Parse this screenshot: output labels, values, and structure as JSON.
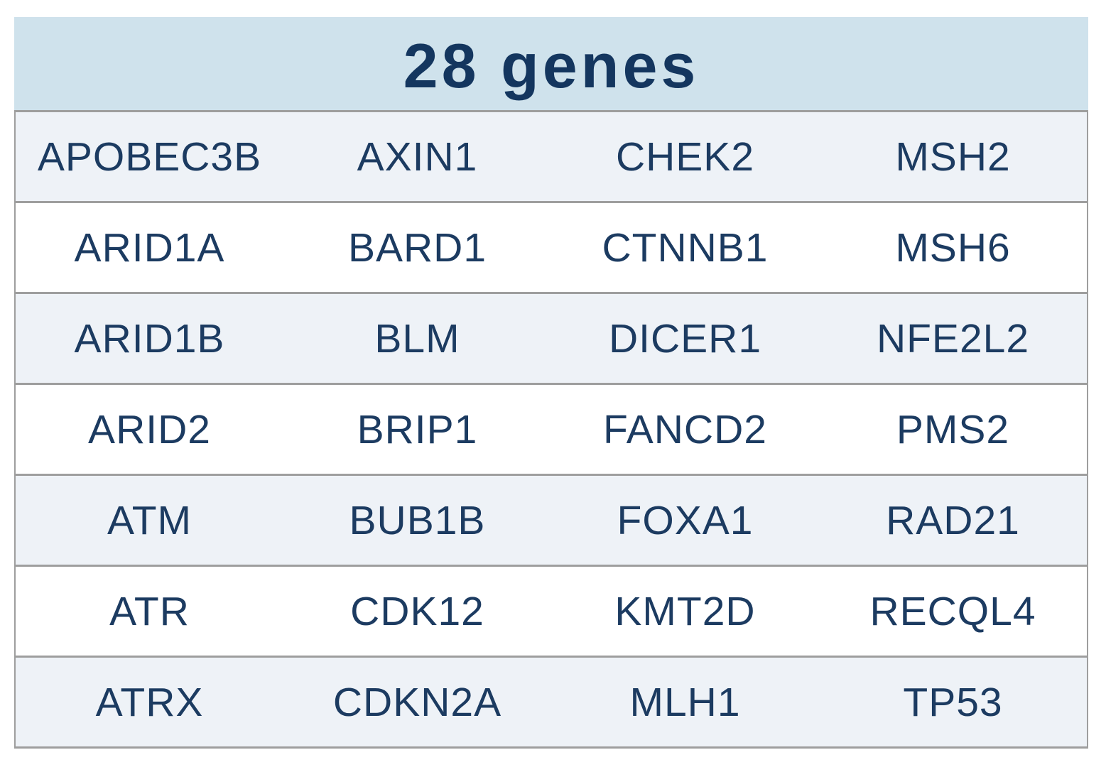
{
  "title": "28 genes",
  "colors": {
    "header_bg": "#cfe2ec",
    "row_alt_bg": "#eef2f7",
    "row_bg": "#ffffff",
    "border": "#9e9e9e",
    "text": "#1c3b61",
    "title_text": "#14365f"
  },
  "table": {
    "rows": [
      [
        "APOBEC3B",
        "AXIN1",
        "CHEK2",
        "MSH2"
      ],
      [
        "ARID1A",
        "BARD1",
        "CTNNB1",
        "MSH6"
      ],
      [
        "ARID1B",
        "BLM",
        "DICER1",
        "NFE2L2"
      ],
      [
        "ARID2",
        "BRIP1",
        "FANCD2",
        "PMS2"
      ],
      [
        "ATM",
        "BUB1B",
        "FOXA1",
        "RAD21"
      ],
      [
        "ATR",
        "CDK12",
        "KMT2D",
        "RECQL4"
      ],
      [
        "ATRX",
        "CDKN2A",
        "MLH1",
        "TP53"
      ]
    ]
  },
  "chart_data": {
    "type": "table",
    "title": "28 genes",
    "columns": 4,
    "rows": [
      [
        "APOBEC3B",
        "AXIN1",
        "CHEK2",
        "MSH2"
      ],
      [
        "ARID1A",
        "BARD1",
        "CTNNB1",
        "MSH6"
      ],
      [
        "ARID1B",
        "BLM",
        "DICER1",
        "NFE2L2"
      ],
      [
        "ARID2",
        "BRIP1",
        "FANCD2",
        "PMS2"
      ],
      [
        "ATM",
        "BUB1B",
        "FOXA1",
        "RAD21"
      ],
      [
        "ATR",
        "CDK12",
        "KMT2D",
        "RECQL4"
      ],
      [
        "ATRX",
        "CDKN2A",
        "MLH1",
        "TP53"
      ]
    ]
  }
}
